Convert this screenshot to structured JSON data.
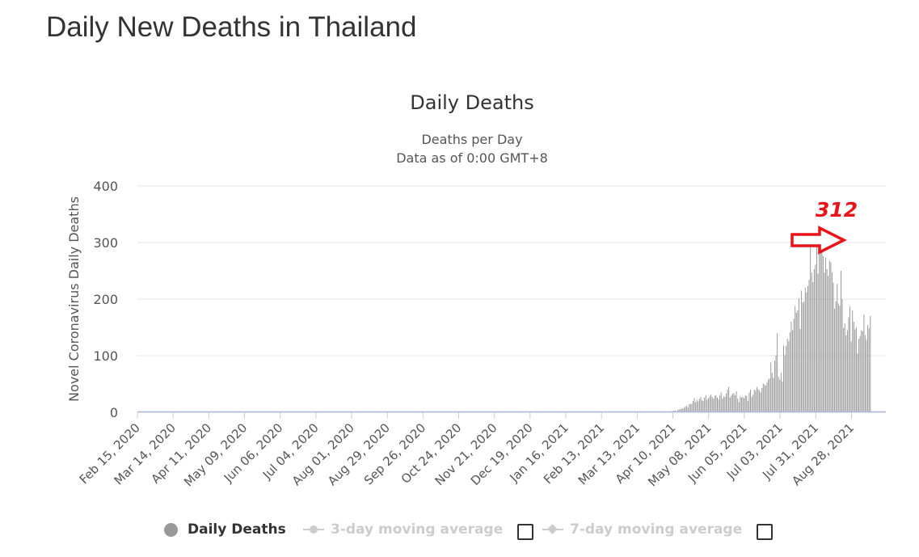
{
  "page": {
    "title": "Daily New Deaths in Thailand"
  },
  "annotation": {
    "label": "312",
    "color": "#e8141a"
  },
  "legend": {
    "items": [
      {
        "label": "Daily Deaths",
        "active": true
      },
      {
        "label": "3-day moving average",
        "active": false
      },
      {
        "label": "7-day moving average",
        "active": false
      }
    ]
  },
  "chart_data": {
    "type": "bar",
    "title": "Daily Deaths",
    "subtitle_line1": "Deaths per Day",
    "subtitle_line2": "Data as of 0:00 GMT+8",
    "ylabel": "Novel Coronavirus Daily Deaths",
    "ylim": [
      0,
      400
    ],
    "yticks": [
      0,
      100,
      200,
      300,
      400
    ],
    "x_start": "2020-02-15",
    "x_end": "2021-09-24",
    "xtick_labels": [
      "Feb 15, 2020",
      "Mar 14, 2020",
      "Apr 11, 2020",
      "May 09, 2020",
      "Jun 06, 2020",
      "Jul 04, 2020",
      "Aug 01, 2020",
      "Aug 29, 2020",
      "Sep 26, 2020",
      "Oct 24, 2020",
      "Nov 21, 2020",
      "Dec 19, 2020",
      "Jan 16, 2021",
      "Feb 13, 2021",
      "Mar 13, 2021",
      "Apr 10, 2021",
      "May 08, 2021",
      "Jun 05, 2021",
      "Jul 03, 2021",
      "Jul 31, 2021",
      "Aug 28, 2021"
    ],
    "bar_color": "#999999",
    "grid": true,
    "legend_position": "bottom",
    "series": [
      {
        "name": "Daily Deaths",
        "start": "2021-04-08",
        "values": [
          1,
          2,
          2,
          3,
          3,
          2,
          4,
          5,
          5,
          6,
          7,
          8,
          10,
          12,
          8,
          14,
          15,
          15,
          20,
          25,
          18,
          22,
          19,
          24,
          27,
          21,
          20,
          26,
          30,
          22,
          25,
          28,
          31,
          27,
          24,
          29,
          30,
          26,
          23,
          30,
          35,
          24,
          28,
          27,
          33,
          40,
          45,
          26,
          30,
          33,
          34,
          30,
          37,
          24,
          18,
          28,
          26,
          27,
          25,
          30,
          29,
          20,
          35,
          40,
          27,
          31,
          40,
          38,
          45,
          41,
          39,
          35,
          43,
          51,
          49,
          47,
          53,
          58,
          60,
          88,
          70,
          61,
          91,
          101,
          140,
          63,
          58,
          70,
          54,
          118,
          101,
          117,
          130,
          126,
          141,
          160,
          145,
          165,
          188,
          176,
          180,
          201,
          147,
          215,
          194,
          196,
          220,
          212,
          223,
          234,
          312,
          247,
          230,
          253,
          261,
          298,
          245,
          282,
          281,
          294,
          276,
          247,
          273,
          253,
          241,
          268,
          265,
          247,
          229,
          183,
          196,
          227,
          192,
          188,
          250,
          200,
          149,
          157,
          136,
          145,
          168,
          187,
          125,
          180,
          160,
          147,
          150,
          104,
          130,
          135,
          145,
          143,
          173,
          136,
          128,
          154,
          148,
          170
        ]
      }
    ]
  }
}
